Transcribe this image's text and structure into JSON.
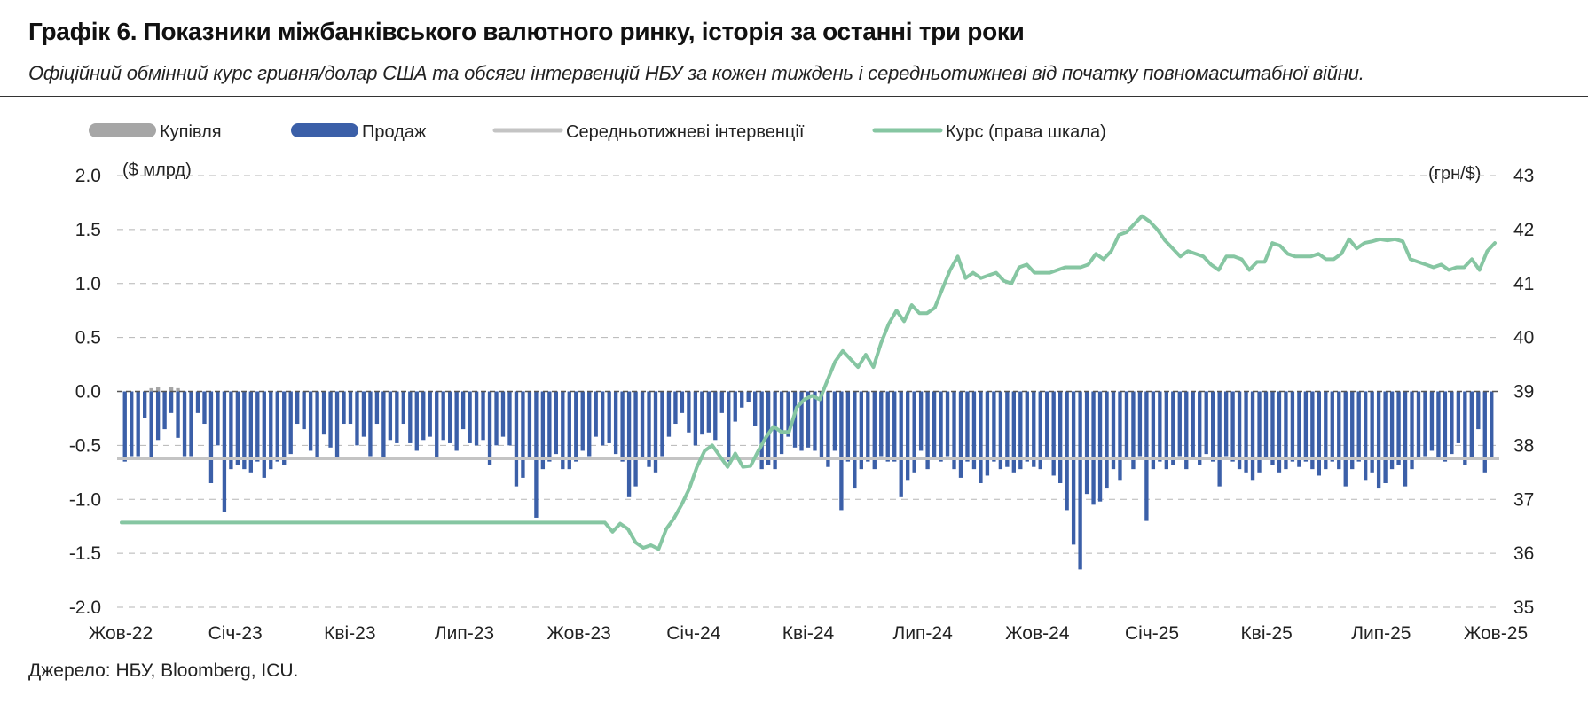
{
  "title": "Графік 6. Показники міжбанківського валютного ринку, історія за останні три роки",
  "subtitle": "Офіційний обмінний курс гривня/долар США та обсяги інтервенцій НБУ за кожен тиждень і середньотижневі від початку повномасштабної війни.",
  "source": "Джерело: НБУ, Bloomberg, ICU.",
  "chart_data": {
    "type": "bar",
    "left_unit": "($ млрд)",
    "right_unit": "(грн/$)",
    "y_left_range": [
      -2.0,
      2.0
    ],
    "y_left_ticks": [
      "2.0",
      "1.5",
      "1.0",
      "0.5",
      "0.0",
      "-0.5",
      "-1.0",
      "-1.5",
      "-2.0"
    ],
    "y_right_range": [
      35,
      43
    ],
    "y_right_ticks": [
      "43",
      "42",
      "41",
      "40",
      "39",
      "38",
      "37",
      "36",
      "35"
    ],
    "x_ticks": [
      "Жов-22",
      "Січ-23",
      "Кві-23",
      "Лип-23",
      "Жов-23",
      "Січ-24",
      "Кві-24",
      "Лип-24",
      "Жов-24",
      "Січ-25",
      "Кві-25",
      "Лип-25",
      "Жов-25"
    ],
    "grid": "horizontal dashed",
    "legend": [
      {
        "label": "Купівля",
        "color": "#a6a6a6",
        "kind": "bar"
      },
      {
        "label": "Продаж",
        "color": "#3b5fa8",
        "kind": "bar"
      },
      {
        "label": "Середньотижневі інтервенції",
        "color": "#c4c4c4",
        "kind": "line"
      },
      {
        "label": "Курс (права шкала)",
        "color": "#86c6a2",
        "kind": "line"
      }
    ],
    "weekly_average": -0.62,
    "series": [
      {
        "name": "Купівля",
        "axis": "left",
        "values": [
          0.0,
          0.0,
          0.0,
          0.0,
          0.03,
          0.04,
          0.0,
          0.04,
          0.03,
          0.0,
          0.0,
          0.0,
          0.0,
          0.0,
          0.0,
          0.0,
          0.0,
          0.0,
          0.0,
          0.0,
          0.0,
          0.0,
          0.0,
          0.0,
          0.0,
          0.0,
          0.0,
          0.0,
          0.0,
          0.0,
          0.0,
          0.0,
          0.0,
          0.0,
          0.0,
          0.0,
          0.0,
          0.0,
          0.0,
          0.0,
          0.0,
          0.0,
          0.0,
          0.0,
          0.0,
          0.0,
          0.0,
          0.0,
          0.0,
          0.0,
          0.0,
          0.0,
          0.0,
          0.0,
          0.0,
          0.0,
          0.0,
          0.0,
          0.0,
          0.0,
          0.0,
          0.0,
          0.0,
          0.0,
          0.0,
          0.0,
          0.0,
          0.0,
          0.0,
          0.0,
          0.0,
          0.0,
          0.0,
          0.0,
          0.0,
          0.0,
          0.0,
          0.0,
          0.0,
          0.0,
          0.0,
          0.0,
          0.0,
          0.0,
          0.0,
          0.0,
          0.0,
          0.0,
          0.0,
          0.0,
          0.0,
          0.0,
          0.0,
          0.0,
          0.0,
          0.0,
          0.0,
          0.0,
          0.0,
          0.0,
          0.0,
          0.0,
          0.0,
          0.0,
          0.0,
          0.0,
          0.0,
          0.0,
          0.0,
          0.0,
          0.0,
          0.0,
          0.0,
          0.0,
          0.0,
          0.0,
          0.0,
          0.0,
          0.0,
          0.0,
          0.0,
          0.0,
          0.0,
          0.0,
          0.0,
          0.0,
          0.0,
          0.0,
          0.0,
          0.0,
          0.0,
          0.0,
          0.0,
          0.0,
          0.0,
          0.0,
          0.0,
          0.0,
          0.0,
          0.0,
          0.0,
          0.0,
          0.0,
          0.0,
          0.0,
          0.0,
          0.0,
          0.0,
          0.0,
          0.0,
          0.0,
          0.0,
          0.0,
          0.0,
          0.0,
          0.0,
          0.0,
          0.0,
          0.0,
          0.0
        ]
      },
      {
        "name": "Продаж",
        "axis": "left",
        "values": [
          -0.65,
          -0.6,
          -0.6,
          -0.25,
          -0.63,
          -0.45,
          -0.35,
          -0.2,
          -0.43,
          -0.6,
          -0.6,
          -0.2,
          -0.3,
          -0.85,
          -0.5,
          -1.12,
          -0.72,
          -0.68,
          -0.72,
          -0.75,
          -0.65,
          -0.8,
          -0.72,
          -0.65,
          -0.68,
          -0.58,
          -0.3,
          -0.35,
          -0.55,
          -0.62,
          -0.4,
          -0.52,
          -0.62,
          -0.3,
          -0.3,
          -0.5,
          -0.42,
          -0.6,
          -0.3,
          -0.62,
          -0.45,
          -0.48,
          -0.3,
          -0.48,
          -0.55,
          -0.45,
          -0.42,
          -0.62,
          -0.45,
          -0.48,
          -0.55,
          -0.35,
          -0.48,
          -0.5,
          -0.45,
          -0.68,
          -0.5,
          -0.42,
          -0.5,
          -0.88,
          -0.8,
          -0.62,
          -1.17,
          -0.72,
          -0.65,
          -0.58,
          -0.72,
          -0.72,
          -0.65,
          -0.55,
          -0.6,
          -0.42,
          -0.5,
          -0.48,
          -0.58,
          -0.65,
          -0.98,
          -0.88,
          -0.62,
          -0.7,
          -0.75,
          -0.6,
          -0.42,
          -0.3,
          -0.2,
          -0.38,
          -0.5,
          -0.4,
          -0.38,
          -0.45,
          -0.2,
          -0.65,
          -0.28,
          -0.15,
          -0.1,
          -0.32,
          -0.72,
          -0.68,
          -0.72,
          -0.58,
          -0.42,
          -0.52,
          -0.55,
          -0.52,
          -0.55,
          -0.62,
          -0.7,
          -0.55,
          -1.1,
          -0.65,
          -0.9,
          -0.72,
          -0.65,
          -0.72,
          -0.6,
          -0.65,
          -0.65,
          -0.98,
          -0.82,
          -0.75,
          -0.55,
          -0.72,
          -0.62,
          -0.65,
          -0.6,
          -0.72,
          -0.8,
          -0.65,
          -0.72,
          -0.85,
          -0.78,
          -0.65,
          -0.72,
          -0.7,
          -0.75,
          -0.72,
          -0.65,
          -0.7,
          -0.72,
          -0.62,
          -0.78,
          -0.85,
          -1.1,
          -1.42,
          -1.65,
          -0.95,
          -1.05,
          -1.02,
          -0.9,
          -0.72,
          -0.82,
          -0.62,
          -0.72,
          -0.6,
          -1.2,
          -0.72,
          -0.65,
          -0.72,
          -0.68,
          -0.6,
          -0.72,
          -0.62,
          -0.68,
          -0.58,
          -0.65,
          -0.88,
          -0.6,
          -0.65,
          -0.72,
          -0.75,
          -0.82,
          -0.75,
          -0.62,
          -0.68,
          -0.75,
          -0.72,
          -0.65,
          -0.7,
          -0.65,
          -0.72,
          -0.78,
          -0.72,
          -0.65,
          -0.72,
          -0.88,
          -0.72,
          -0.65,
          -0.82,
          -0.75,
          -0.9,
          -0.85,
          -0.72,
          -0.68,
          -0.88,
          -0.72,
          -0.62,
          -0.6,
          -0.55,
          -0.62,
          -0.65,
          -0.58,
          -0.48,
          -0.68,
          -0.62,
          -0.35,
          -0.75,
          -0.62
        ]
      },
      {
        "name": "Курс (права шкала)",
        "axis": "right",
        "values": [
          36.57,
          36.57,
          36.57,
          36.57,
          36.57,
          36.57,
          36.57,
          36.57,
          36.57,
          36.57,
          36.57,
          36.57,
          36.57,
          36.57,
          36.57,
          36.57,
          36.57,
          36.57,
          36.57,
          36.57,
          36.57,
          36.57,
          36.57,
          36.57,
          36.57,
          36.57,
          36.57,
          36.57,
          36.57,
          36.57,
          36.57,
          36.57,
          36.57,
          36.57,
          36.57,
          36.57,
          36.57,
          36.57,
          36.57,
          36.57,
          36.57,
          36.57,
          36.57,
          36.57,
          36.57,
          36.57,
          36.57,
          36.57,
          36.57,
          36.57,
          36.57,
          36.57,
          36.57,
          36.57,
          36.57,
          36.57,
          36.57,
          36.57,
          36.57,
          36.57,
          36.57,
          36.57,
          36.57,
          36.57,
          36.4,
          36.55,
          36.45,
          36.2,
          36.1,
          36.15,
          36.08,
          36.45,
          36.65,
          36.9,
          37.2,
          37.6,
          37.9,
          38.0,
          37.8,
          37.6,
          37.85,
          37.6,
          37.62,
          37.9,
          38.15,
          38.35,
          38.25,
          38.25,
          38.7,
          38.85,
          38.92,
          38.85,
          39.2,
          39.55,
          39.75,
          39.6,
          39.45,
          39.68,
          39.45,
          39.9,
          40.25,
          40.5,
          40.3,
          40.6,
          40.45,
          40.45,
          40.55,
          40.9,
          41.25,
          41.5,
          41.1,
          41.2,
          41.1,
          41.15,
          41.2,
          41.05,
          41.0,
          41.3,
          41.35,
          41.2,
          41.2,
          41.2,
          41.25,
          41.3,
          41.3,
          41.3,
          41.35,
          41.55,
          41.45,
          41.6,
          41.9,
          41.95,
          42.1,
          42.25,
          42.15,
          42.0,
          41.8,
          41.65,
          41.5,
          41.6,
          41.55,
          41.5,
          41.35,
          41.25,
          41.5,
          41.5,
          41.45,
          41.25,
          41.4,
          41.4,
          41.75,
          41.7,
          41.55,
          41.5,
          41.5,
          41.5,
          41.55,
          41.45,
          41.45,
          41.55,
          41.82,
          41.65,
          41.75,
          41.78,
          41.82,
          41.8,
          41.82,
          41.78,
          41.45,
          41.4,
          41.35,
          41.3,
          41.35,
          41.25,
          41.3,
          41.3,
          41.45,
          41.25,
          41.6,
          41.75
        ]
      }
    ]
  }
}
